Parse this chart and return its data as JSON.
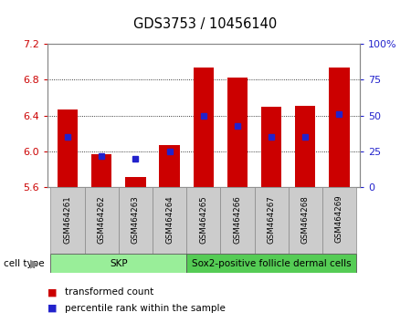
{
  "title": "GDS3753 / 10456140",
  "samples": [
    "GSM464261",
    "GSM464262",
    "GSM464263",
    "GSM464264",
    "GSM464265",
    "GSM464266",
    "GSM464267",
    "GSM464268",
    "GSM464269"
  ],
  "transformed_counts": [
    6.47,
    5.97,
    5.72,
    6.07,
    6.93,
    6.82,
    6.5,
    6.51,
    6.93
  ],
  "percentile_ranks": [
    35,
    22,
    20,
    25,
    50,
    43,
    35,
    35,
    51
  ],
  "y_min": 5.6,
  "y_max": 7.2,
  "y_ticks": [
    5.6,
    6.0,
    6.4,
    6.8,
    7.2
  ],
  "y2_ticks": [
    0,
    25,
    50,
    75,
    100
  ],
  "bar_color": "#cc0000",
  "dot_color": "#2222cc",
  "cell_type_groups": [
    {
      "label": "SKP",
      "start": 0,
      "end": 4,
      "color": "#99ee99"
    },
    {
      "label": "Sox2-positive follicle dermal cells",
      "start": 4,
      "end": 9,
      "color": "#55cc55"
    }
  ],
  "cell_type_label": "cell type",
  "legend_bar_label": "transformed count",
  "legend_dot_label": "percentile rank within the sample",
  "tick_color_left": "#cc0000",
  "tick_color_right": "#2222cc",
  "bar_bottom": 5.6,
  "bar_width": 0.6
}
